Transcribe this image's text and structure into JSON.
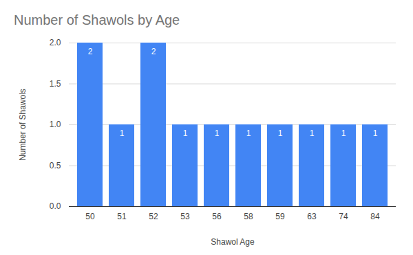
{
  "chart_data": {
    "type": "bar",
    "title": "Number of Shawols by Age",
    "x_label": "Shawol Age",
    "y_label": "Number of Shawols",
    "categories": [
      "50",
      "51",
      "52",
      "53",
      "56",
      "58",
      "59",
      "63",
      "74",
      "84"
    ],
    "values": [
      2,
      1,
      2,
      1,
      1,
      1,
      1,
      1,
      1,
      1
    ],
    "color": "#4285f4",
    "ylim": [
      0,
      2
    ],
    "yticks": [
      {
        "value": 0,
        "label": "0.0"
      },
      {
        "value": 0.5,
        "label": "0.5"
      },
      {
        "value": 1,
        "label": "1.0"
      },
      {
        "value": 1.5,
        "label": "1.5"
      },
      {
        "value": 2,
        "label": "2.0"
      }
    ],
    "grid": true,
    "data_labels": true
  }
}
